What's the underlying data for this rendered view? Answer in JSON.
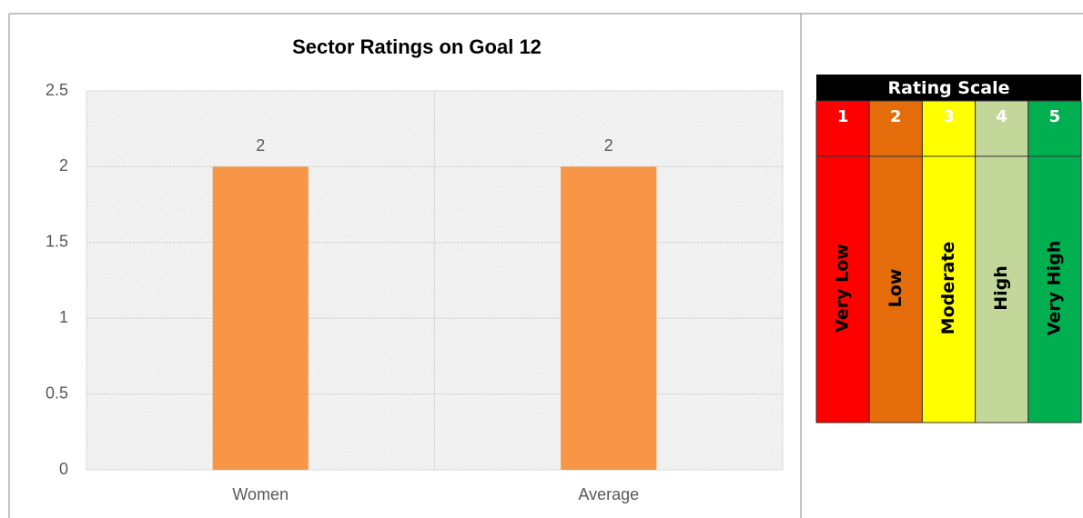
{
  "chart_data": {
    "type": "bar",
    "title": "Sector Ratings on Goal 12",
    "categories": [
      "Women",
      "Average"
    ],
    "values": [
      2,
      2
    ],
    "color": "#f79646",
    "ylim": [
      0,
      2.5
    ],
    "yticks": [
      0,
      0.5,
      1,
      1.5,
      2,
      2.5
    ],
    "grid": true
  },
  "rating_scale": {
    "title": "Rating Scale",
    "levels": [
      {
        "number": "1",
        "label": "Very Low",
        "color": "#ff0000"
      },
      {
        "number": "2",
        "label": "Low",
        "color": "#e46c0a"
      },
      {
        "number": "3",
        "label": "Moderate",
        "color": "#ffff00"
      },
      {
        "number": "4",
        "label": "High",
        "color": "#c4d79b"
      },
      {
        "number": "5",
        "label": "Very High",
        "color": "#00b050"
      }
    ]
  }
}
